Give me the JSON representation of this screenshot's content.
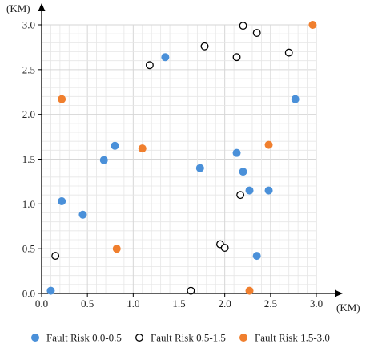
{
  "chart_data": {
    "type": "scatter",
    "xlabel": "(KM)",
    "ylabel": "(KM)",
    "xlim": [
      0,
      3.0
    ],
    "ylim": [
      0,
      3.0
    ],
    "xticks": [
      "0.0",
      "0.5",
      "1.0",
      "1.5",
      "2.0",
      "2.5",
      "3.0"
    ],
    "yticks": [
      "0.0",
      "0.5",
      "1.0",
      "1.5",
      "2.0",
      "2.5",
      "3.0"
    ],
    "grid": true,
    "legend_position": "bottom",
    "series": [
      {
        "name": "Fault Risk  0.0-0.5",
        "color": "#4a90d9",
        "marker": "filled-circle",
        "points": [
          [
            0.1,
            0.03
          ],
          [
            0.22,
            1.03
          ],
          [
            0.45,
            0.88
          ],
          [
            0.68,
            1.49
          ],
          [
            0.8,
            1.65
          ],
          [
            1.35,
            2.64
          ],
          [
            1.73,
            1.4
          ],
          [
            2.13,
            1.57
          ],
          [
            2.2,
            1.36
          ],
          [
            2.27,
            1.15
          ],
          [
            2.48,
            1.15
          ],
          [
            2.35,
            0.42
          ],
          [
            2.77,
            2.17
          ]
        ]
      },
      {
        "name": "Fault Risk  0.5-1.5",
        "color": "#000000",
        "marker": "open-circle",
        "points": [
          [
            0.15,
            0.42
          ],
          [
            1.18,
            2.55
          ],
          [
            1.78,
            2.76
          ],
          [
            2.2,
            2.99
          ],
          [
            2.35,
            2.91
          ],
          [
            2.13,
            2.64
          ],
          [
            2.7,
            2.69
          ],
          [
            2.17,
            1.1
          ],
          [
            1.95,
            0.55
          ],
          [
            2.0,
            0.51
          ],
          [
            1.63,
            0.03
          ]
        ]
      },
      {
        "name": "Fault Risk  1.5-3.0",
        "color": "#f07f2e",
        "marker": "filled-circle",
        "points": [
          [
            0.22,
            2.17
          ],
          [
            1.1,
            1.62
          ],
          [
            2.48,
            1.66
          ],
          [
            2.96,
            3.0
          ],
          [
            0.82,
            0.5
          ],
          [
            2.27,
            0.03
          ]
        ]
      }
    ]
  }
}
